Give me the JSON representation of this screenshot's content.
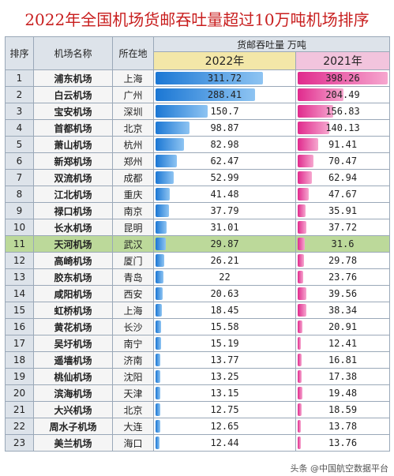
{
  "title": "2022年全国机场货邮吞吐量超过10万吨机场排序",
  "headers": {
    "rank": "排序",
    "name": "机场名称",
    "city": "所在地",
    "group": "货邮吞吐量  万吨",
    "y2022": "2022年",
    "y2021": "2021年"
  },
  "colors": {
    "bar_2022": "#1b77d4",
    "bar_2021": "#e02a8d",
    "highlight_row": "#bcd99a",
    "title": "#c81e1e"
  },
  "scale_max": 400,
  "highlight_rank": "11",
  "rows": [
    {
      "rank": "1",
      "name": "浦东机场",
      "city": "上海",
      "v2022": "311.72",
      "v2021": "398.26"
    },
    {
      "rank": "2",
      "name": "白云机场",
      "city": "广州",
      "v2022": "288.41",
      "v2021": "204.49"
    },
    {
      "rank": "3",
      "name": "宝安机场",
      "city": "深圳",
      "v2022": "150.7",
      "v2021": "156.83"
    },
    {
      "rank": "4",
      "name": "首都机场",
      "city": "北京",
      "v2022": "98.87",
      "v2021": "140.13"
    },
    {
      "rank": "5",
      "name": "萧山机场",
      "city": "杭州",
      "v2022": "82.98",
      "v2021": "91.41"
    },
    {
      "rank": "6",
      "name": "新郑机场",
      "city": "郑州",
      "v2022": "62.47",
      "v2021": "70.47"
    },
    {
      "rank": "7",
      "name": "双流机场",
      "city": "成都",
      "v2022": "52.99",
      "v2021": "62.94"
    },
    {
      "rank": "8",
      "name": "江北机场",
      "city": "重庆",
      "v2022": "41.48",
      "v2021": "47.67"
    },
    {
      "rank": "9",
      "name": "禄口机场",
      "city": "南京",
      "v2022": "37.79",
      "v2021": "35.91"
    },
    {
      "rank": "10",
      "name": "长水机场",
      "city": "昆明",
      "v2022": "31.01",
      "v2021": "37.72"
    },
    {
      "rank": "11",
      "name": "天河机场",
      "city": "武汉",
      "v2022": "29.87",
      "v2021": "31.6"
    },
    {
      "rank": "12",
      "name": "高崎机场",
      "city": "厦门",
      "v2022": "26.21",
      "v2021": "29.78"
    },
    {
      "rank": "13",
      "name": "胶东机场",
      "city": "青岛",
      "v2022": "22",
      "v2021": "23.76"
    },
    {
      "rank": "14",
      "name": "咸阳机场",
      "city": "西安",
      "v2022": "20.63",
      "v2021": "39.56"
    },
    {
      "rank": "15",
      "name": "虹桥机场",
      "city": "上海",
      "v2022": "18.45",
      "v2021": "38.34"
    },
    {
      "rank": "16",
      "name": "黄花机场",
      "city": "长沙",
      "v2022": "15.58",
      "v2021": "20.91"
    },
    {
      "rank": "17",
      "name": "吴圩机场",
      "city": "南宁",
      "v2022": "15.19",
      "v2021": "12.41"
    },
    {
      "rank": "18",
      "name": "遥墙机场",
      "city": "济南",
      "v2022": "13.77",
      "v2021": "16.81"
    },
    {
      "rank": "19",
      "name": "桃仙机场",
      "city": "沈阳",
      "v2022": "13.25",
      "v2021": "17.38"
    },
    {
      "rank": "20",
      "name": "滨海机场",
      "city": "天津",
      "v2022": "13.15",
      "v2021": "19.48"
    },
    {
      "rank": "21",
      "name": "大兴机场",
      "city": "北京",
      "v2022": "12.75",
      "v2021": "18.59"
    },
    {
      "rank": "22",
      "name": "周水子机场",
      "city": "大连",
      "v2022": "12.65",
      "v2021": "13.78"
    },
    {
      "rank": "23",
      "name": "美兰机场",
      "city": "海口",
      "v2022": "12.44",
      "v2021": "13.76"
    }
  ],
  "watermark": "头条 @中国航空数据平台"
}
